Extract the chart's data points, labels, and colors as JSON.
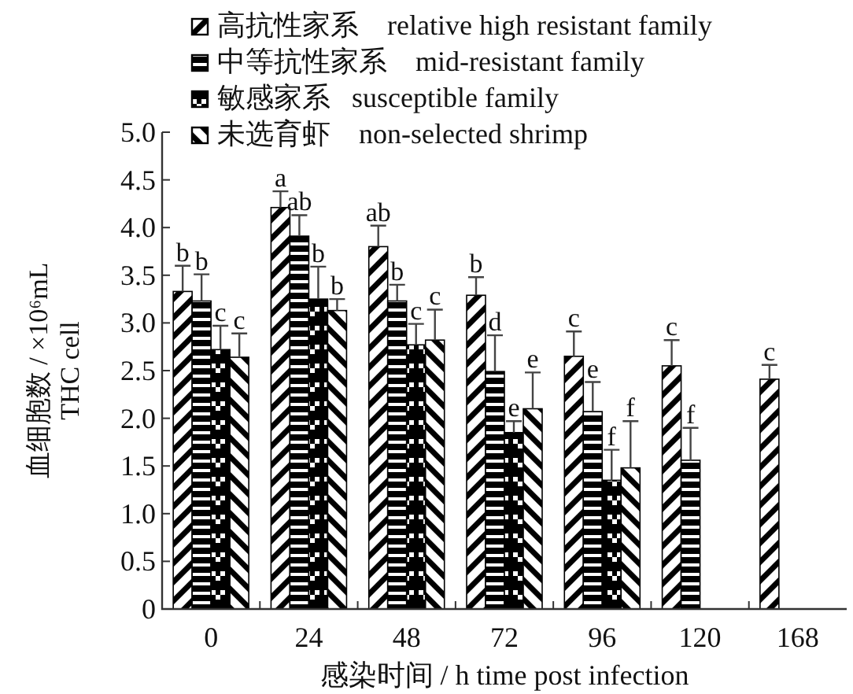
{
  "chart_data": {
    "type": "bar",
    "xlabel": "感染时间 / h  time post infection",
    "ylabel": "血细胞数 / ×10⁶mL\nTHC cell",
    "categories": [
      "0",
      "24",
      "48",
      "72",
      "96",
      "120",
      "168"
    ],
    "ylim": [
      0,
      5
    ],
    "yticks": [
      0,
      0.5,
      {
        "value": 1,
        "label": "1.0"
      },
      1.5,
      {
        "value": 2,
        "label": "2.0"
      },
      2.5,
      {
        "value": 3,
        "label": "3.0"
      },
      3.5,
      {
        "value": 4,
        "label": "4.0"
      },
      4.5,
      {
        "value": 5,
        "label": "5.0"
      }
    ],
    "legend": "top",
    "series": [
      {
        "name": "高抗性家系    relative high resistant family",
        "color": "#000000",
        "values": [
          3.33,
          4.21,
          3.8,
          3.29,
          2.65,
          2.55,
          2.41
        ],
        "errors": [
          0.27,
          0.17,
          0.22,
          0.19,
          0.26,
          0.27,
          0.15
        ],
        "value_labels": [
          "b",
          "a",
          "ab",
          "b",
          "c",
          "c",
          "c"
        ]
      },
      {
        "name": "中等抗性家系    mid-resistant family",
        "color": "#000000",
        "values": [
          3.23,
          3.91,
          3.23,
          2.49,
          2.07,
          1.56,
          null
        ],
        "errors": [
          0.28,
          0.22,
          0.17,
          0.38,
          0.31,
          0.34,
          null
        ],
        "value_labels": [
          "b",
          "ab",
          "b",
          "d",
          "e",
          "f",
          null
        ]
      },
      {
        "name": "敏感家系   susceptible family",
        "color": "#000000",
        "values": [
          2.72,
          3.25,
          2.77,
          1.85,
          1.35,
          null,
          null
        ],
        "errors": [
          0.25,
          0.34,
          0.22,
          0.12,
          0.32,
          null,
          null
        ],
        "value_labels": [
          "c",
          "b",
          "c",
          "e",
          "f",
          null,
          null
        ]
      },
      {
        "name": "未选育虾    non-selected shrimp",
        "color": "#000000",
        "values": [
          2.64,
          3.13,
          2.82,
          2.1,
          1.48,
          null,
          null
        ],
        "errors": [
          0.25,
          0.12,
          0.32,
          0.38,
          0.49,
          null,
          null
        ],
        "value_labels": [
          "c",
          "b",
          "c",
          "e",
          "f",
          null,
          null
        ]
      }
    ]
  }
}
